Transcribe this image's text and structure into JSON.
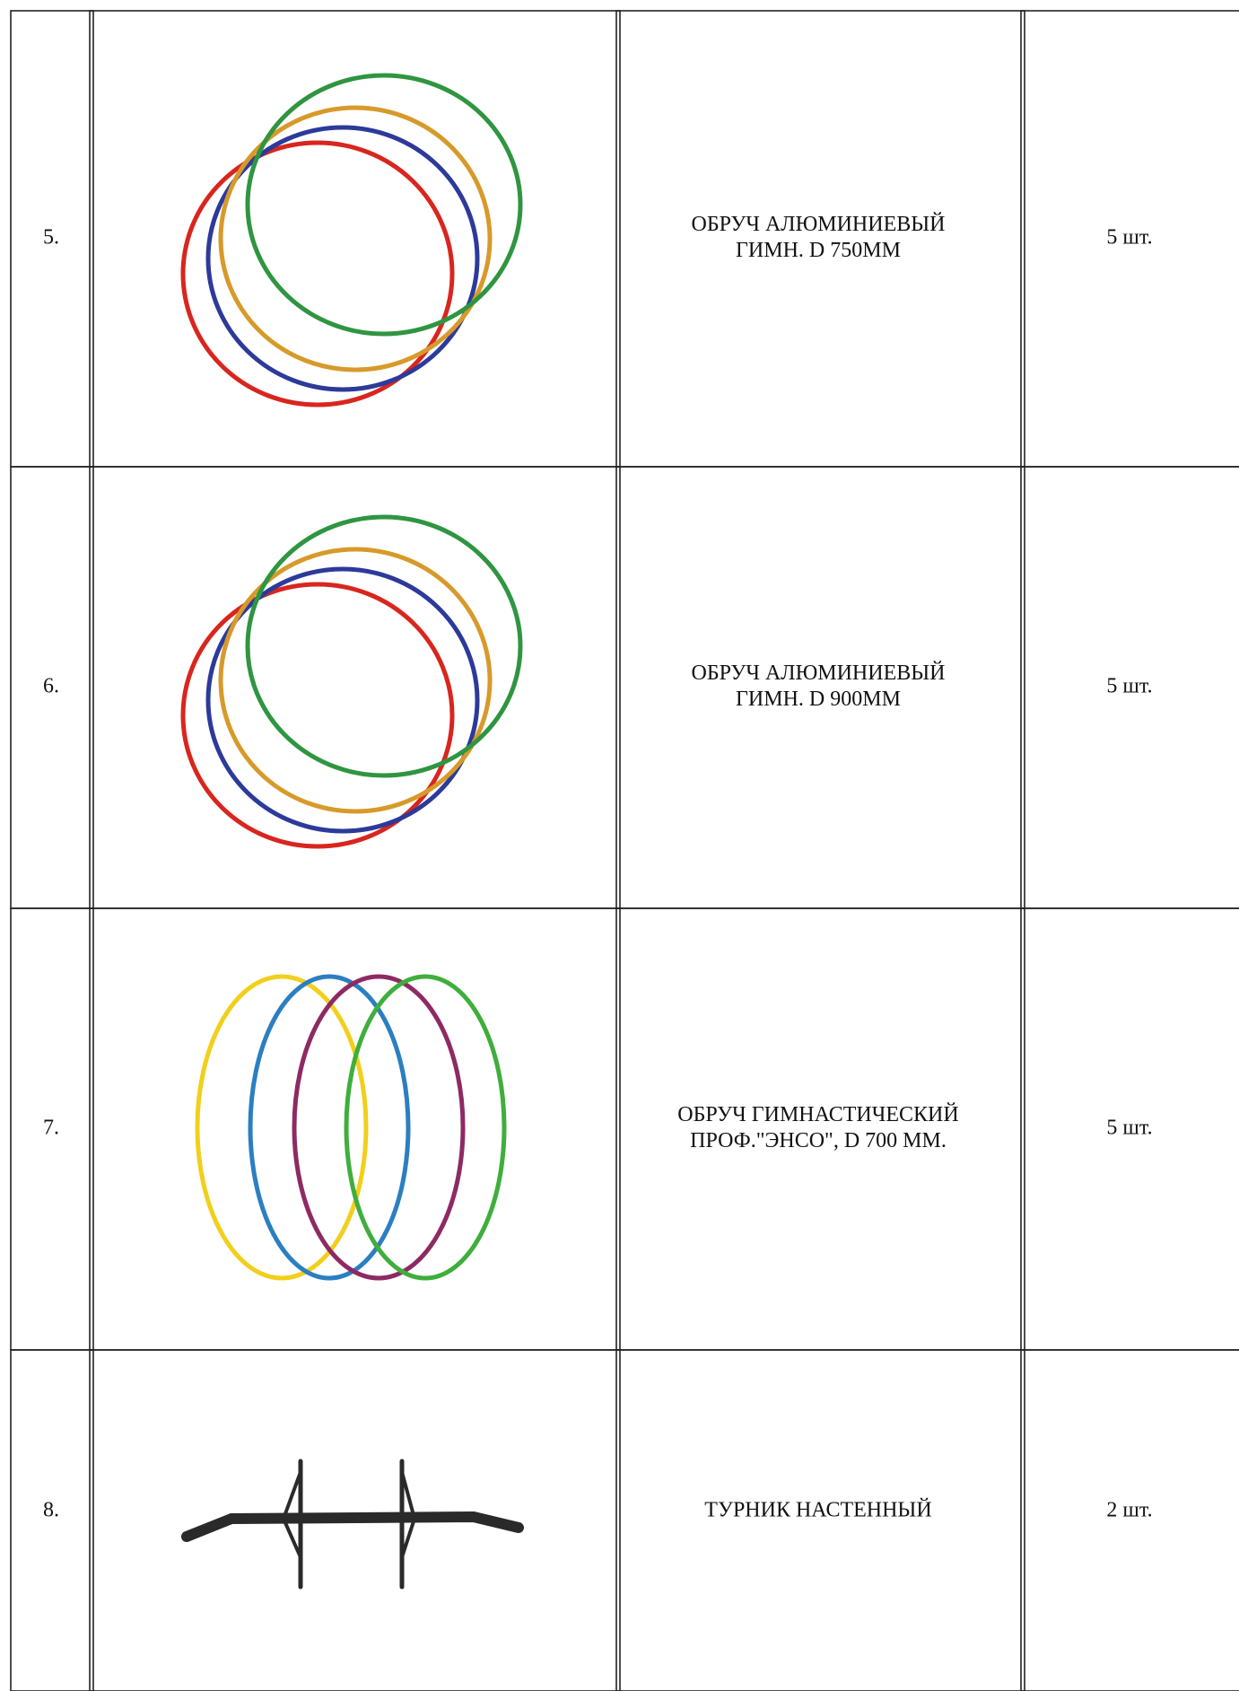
{
  "table": {
    "rows": [
      {
        "number": "5.",
        "name": [
          "ОБРУЧ АЛЮМИНИЕВЫЙ",
          "ГИМН. D 750ММ"
        ],
        "quantity": "5 шт."
      },
      {
        "number": "6.",
        "name": [
          "ОБРУЧ АЛЮМИНИЕВЫЙ",
          "ГИМН. D 900ММ"
        ],
        "quantity": "5 шт."
      },
      {
        "number": "7.",
        "name": [
          "ОБРУЧ ГИМНАСТИЧЕСКИЙ",
          "ПРОФ.\"ЭНСО\", D 700 ММ."
        ],
        "quantity": "5 шт."
      },
      {
        "number": "8.",
        "name": [
          "ТУРНИК НАСТЕННЫЙ"
        ],
        "quantity": "2 шт."
      }
    ]
  }
}
